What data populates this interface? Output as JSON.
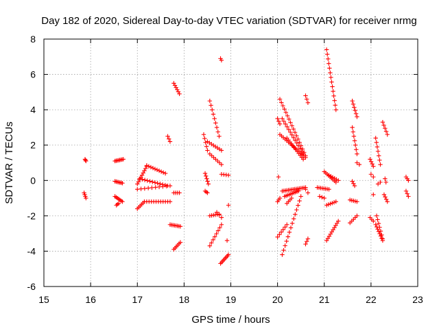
{
  "chart_data": {
    "type": "scatter",
    "title": "Day 182 of 2020, Sidereal Day-to-day VTEC variation (SDTVAR) for receiver nrmg",
    "xlabel": "GPS time / hours",
    "ylabel": "SDTVAR / TECUs",
    "xlim": [
      15,
      23
    ],
    "ylim": [
      -6,
      8
    ],
    "xticks": [
      "15",
      "16",
      "17",
      "18",
      "19",
      "20",
      "21",
      "22",
      "23"
    ],
    "yticks": [
      "-6",
      "-4",
      "-2",
      "0",
      "2",
      "4",
      "6",
      "8"
    ],
    "grid": true,
    "marker": "+",
    "color": "#ff0000",
    "series_segments": [
      {
        "x0": 15.88,
        "y0": 1.2,
        "x1": 15.9,
        "y1": 1.1,
        "n": 3
      },
      {
        "x0": 15.86,
        "y0": -0.7,
        "x1": 15.9,
        "y1": -1.0,
        "n": 4
      },
      {
        "x0": 16.52,
        "y0": 1.1,
        "x1": 16.7,
        "y1": 1.2,
        "n": 8
      },
      {
        "x0": 16.52,
        "y0": -0.05,
        "x1": 16.68,
        "y1": -0.15,
        "n": 7
      },
      {
        "x0": 16.52,
        "y0": -0.9,
        "x1": 16.68,
        "y1": -1.2,
        "n": 7
      },
      {
        "x0": 16.55,
        "y0": -1.4,
        "x1": 16.6,
        "y1": -1.3,
        "n": 3
      },
      {
        "x0": 17.0,
        "y0": -0.2,
        "x1": 17.2,
        "y1": 0.8,
        "n": 9
      },
      {
        "x0": 17.2,
        "y0": 0.85,
        "x1": 17.6,
        "y1": 0.4,
        "n": 10
      },
      {
        "x0": 17.05,
        "y0": 0.1,
        "x1": 17.65,
        "y1": -0.3,
        "n": 12
      },
      {
        "x0": 17.0,
        "y0": -1.6,
        "x1": 17.15,
        "y1": -1.2,
        "n": 6
      },
      {
        "x0": 17.15,
        "y0": -1.2,
        "x1": 17.7,
        "y1": -1.2,
        "n": 12
      },
      {
        "x0": 17.0,
        "y0": -0.5,
        "x1": 17.7,
        "y1": -0.3,
        "n": 10
      },
      {
        "x0": 17.65,
        "y0": 2.5,
        "x1": 17.7,
        "y1": 2.2,
        "n": 3
      },
      {
        "x0": 17.78,
        "y0": 5.5,
        "x1": 17.9,
        "y1": 4.9,
        "n": 6
      },
      {
        "x0": 17.7,
        "y0": -2.5,
        "x1": 17.92,
        "y1": -2.6,
        "n": 8
      },
      {
        "x0": 17.78,
        "y0": -3.9,
        "x1": 17.92,
        "y1": -3.5,
        "n": 6
      },
      {
        "x0": 17.78,
        "y0": -0.7,
        "x1": 17.9,
        "y1": -0.7,
        "n": 4
      },
      {
        "x0": 18.42,
        "y0": 2.6,
        "x1": 18.5,
        "y1": 1.7,
        "n": 5
      },
      {
        "x0": 18.45,
        "y0": 0.4,
        "x1": 18.52,
        "y1": -0.2,
        "n": 5
      },
      {
        "x0": 18.45,
        "y0": -0.6,
        "x1": 18.5,
        "y1": -0.7,
        "n": 3
      },
      {
        "x0": 18.55,
        "y0": 4.5,
        "x1": 18.75,
        "y1": 2.5,
        "n": 9
      },
      {
        "x0": 18.5,
        "y0": 2.2,
        "x1": 18.8,
        "y1": 1.7,
        "n": 8
      },
      {
        "x0": 18.55,
        "y0": 1.5,
        "x1": 18.8,
        "y1": 0.9,
        "n": 7
      },
      {
        "x0": 18.55,
        "y0": -2.0,
        "x1": 18.75,
        "y1": -1.9,
        "n": 6
      },
      {
        "x0": 18.55,
        "y0": -3.7,
        "x1": 18.8,
        "y1": -2.5,
        "n": 8
      },
      {
        "x0": 18.7,
        "y0": -1.8,
        "x1": 18.8,
        "y1": -2.1,
        "n": 3
      },
      {
        "x0": 18.78,
        "y0": -4.7,
        "x1": 18.95,
        "y1": -4.2,
        "n": 8
      },
      {
        "x0": 18.8,
        "y0": 0.35,
        "x1": 18.95,
        "y1": 0.3,
        "n": 4
      },
      {
        "x0": 18.78,
        "y0": 6.9,
        "x1": 18.8,
        "y1": 6.8,
        "n": 2
      },
      {
        "x0": 18.95,
        "y0": -1.4,
        "x1": 18.95,
        "y1": -1.4,
        "n": 1
      },
      {
        "x0": 18.92,
        "y0": -3.4,
        "x1": 18.92,
        "y1": -3.4,
        "n": 1
      },
      {
        "x0": 20.0,
        "y0": 3.5,
        "x1": 20.05,
        "y1": 3.2,
        "n": 3
      },
      {
        "x0": 20.02,
        "y0": 0.2,
        "x1": 20.02,
        "y1": 0.2,
        "n": 1
      },
      {
        "x0": 20.05,
        "y0": 4.6,
        "x1": 20.6,
        "y1": 1.4,
        "n": 18
      },
      {
        "x0": 20.1,
        "y0": 3.5,
        "x1": 20.55,
        "y1": 1.5,
        "n": 14
      },
      {
        "x0": 20.05,
        "y0": 2.6,
        "x1": 20.6,
        "y1": 1.3,
        "n": 16
      },
      {
        "x0": 20.2,
        "y0": 2.4,
        "x1": 20.55,
        "y1": 1.2,
        "n": 12
      },
      {
        "x0": 20.0,
        "y0": -1.2,
        "x1": 20.05,
        "y1": -1.0,
        "n": 3
      },
      {
        "x0": 20.1,
        "y0": -0.6,
        "x1": 20.6,
        "y1": -0.4,
        "n": 16
      },
      {
        "x0": 20.15,
        "y0": -0.9,
        "x1": 20.45,
        "y1": -0.6,
        "n": 10
      },
      {
        "x0": 20.2,
        "y0": -1.3,
        "x1": 20.3,
        "y1": -1.0,
        "n": 4
      },
      {
        "x0": 20.0,
        "y0": -3.2,
        "x1": 20.2,
        "y1": -2.5,
        "n": 6
      },
      {
        "x0": 20.1,
        "y0": -4.2,
        "x1": 20.5,
        "y1": -0.9,
        "n": 14
      },
      {
        "x0": 20.6,
        "y0": 4.8,
        "x1": 20.65,
        "y1": 4.4,
        "n": 3
      },
      {
        "x0": 20.6,
        "y0": -3.6,
        "x1": 20.65,
        "y1": -3.3,
        "n": 3
      },
      {
        "x0": 20.6,
        "y0": -0.5,
        "x1": 20.65,
        "y1": -0.7,
        "n": 2
      },
      {
        "x0": 21.05,
        "y0": 7.4,
        "x1": 21.25,
        "y1": 4.0,
        "n": 14
      },
      {
        "x0": 21.0,
        "y0": 0.5,
        "x1": 21.25,
        "y1": -0.1,
        "n": 9
      },
      {
        "x0": 20.85,
        "y0": -0.4,
        "x1": 21.1,
        "y1": -0.5,
        "n": 8
      },
      {
        "x0": 20.9,
        "y0": -0.9,
        "x1": 21.0,
        "y1": -1.0,
        "n": 3
      },
      {
        "x0": 21.05,
        "y0": -1.4,
        "x1": 21.25,
        "y1": -1.2,
        "n": 6
      },
      {
        "x0": 21.05,
        "y0": -3.4,
        "x1": 21.3,
        "y1": -2.3,
        "n": 10
      },
      {
        "x0": 21.1,
        "y0": 0.3,
        "x1": 21.3,
        "y1": 0.0,
        "n": 6
      },
      {
        "x0": 21.6,
        "y0": 4.5,
        "x1": 21.7,
        "y1": 3.6,
        "n": 6
      },
      {
        "x0": 21.6,
        "y0": 3.0,
        "x1": 21.7,
        "y1": 1.5,
        "n": 7
      },
      {
        "x0": 21.6,
        "y0": -0.05,
        "x1": 21.65,
        "y1": -0.3,
        "n": 3
      },
      {
        "x0": 21.55,
        "y0": -1.1,
        "x1": 21.7,
        "y1": -1.2,
        "n": 5
      },
      {
        "x0": 21.55,
        "y0": -2.4,
        "x1": 21.7,
        "y1": -2.0,
        "n": 5
      },
      {
        "x0": 21.7,
        "y0": 1.0,
        "x1": 21.75,
        "y1": 0.9,
        "n": 2
      },
      {
        "x0": 21.98,
        "y0": 1.2,
        "x1": 22.05,
        "y1": 0.8,
        "n": 4
      },
      {
        "x0": 22.0,
        "y0": 0.35,
        "x1": 22.05,
        "y1": 0.2,
        "n": 2
      },
      {
        "x0": 22.05,
        "y0": -0.8,
        "x1": 22.05,
        "y1": -0.8,
        "n": 1
      },
      {
        "x0": 21.98,
        "y0": -2.1,
        "x1": 22.05,
        "y1": -2.3,
        "n": 3
      },
      {
        "x0": 22.1,
        "y0": 2.4,
        "x1": 22.2,
        "y1": 0.9,
        "n": 7
      },
      {
        "x0": 22.1,
        "y0": -2.5,
        "x1": 22.25,
        "y1": -3.4,
        "n": 8
      },
      {
        "x0": 22.12,
        "y0": -2.0,
        "x1": 22.25,
        "y1": -3.3,
        "n": 7
      },
      {
        "x0": 22.15,
        "y0": -0.2,
        "x1": 22.2,
        "y1": -0.1,
        "n": 2
      },
      {
        "x0": 22.25,
        "y0": 3.3,
        "x1": 22.35,
        "y1": 2.6,
        "n": 5
      },
      {
        "x0": 22.28,
        "y0": -0.8,
        "x1": 22.35,
        "y1": -1.2,
        "n": 4
      },
      {
        "x0": 22.3,
        "y0": 0.1,
        "x1": 22.32,
        "y1": -0.1,
        "n": 2
      },
      {
        "x0": 22.75,
        "y0": 0.2,
        "x1": 22.8,
        "y1": 0.0,
        "n": 3
      },
      {
        "x0": 22.75,
        "y0": -0.6,
        "x1": 22.8,
        "y1": -0.9,
        "n": 3
      }
    ]
  }
}
